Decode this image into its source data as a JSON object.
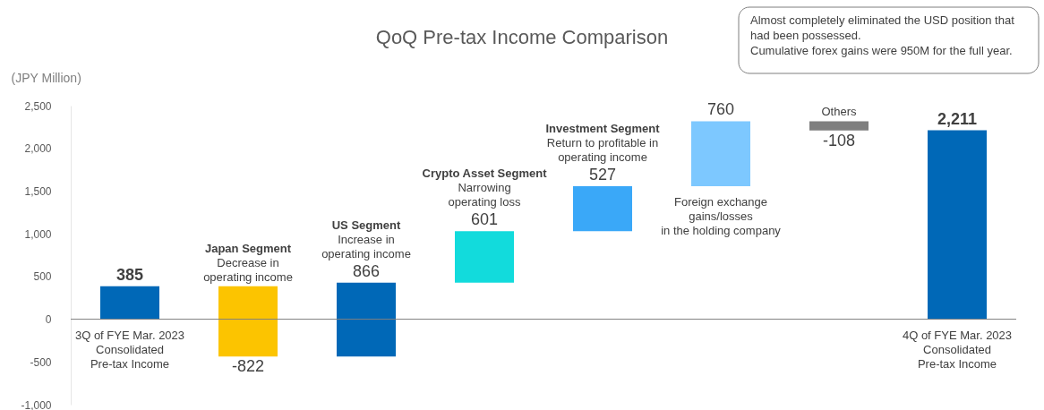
{
  "chart_data": {
    "type": "bar",
    "title": "QoQ Pre-tax Income Comparison",
    "ylabel": "(JPY Million)",
    "categories": [
      "3Q of FYE Mar. 2023\nConsolidated\nPre-tax Income",
      "Japan Segment",
      "US Segment",
      "Crypto Asset Segment",
      "Investment Segment",
      "Foreign exchange\ngains/losses\nin the holding company",
      "Others",
      "4Q of FYE Mar. 2023\nConsolidated\nPre-tax Income"
    ],
    "values": [
      385,
      -822,
      866,
      601,
      527,
      760,
      -108,
      2211
    ],
    "base": [
      0,
      385,
      -437,
      429,
      1030,
      1557,
      2317,
      0
    ],
    "colors": [
      "#0068b7",
      "#fcc400",
      "#0068b7",
      "#12dbdc",
      "#3aa8f8",
      "#7dc8ff",
      "#7f7f7f",
      "#0068b7"
    ],
    "ylim": [
      -1000,
      2500
    ],
    "yticks": [
      {
        "value": -1000,
        "label": "-1,000"
      },
      -500,
      0,
      500,
      {
        "value": 1000,
        "label": "1,000"
      },
      {
        "value": 1500,
        "label": "1,500"
      },
      {
        "value": 2000,
        "label": "2,000"
      },
      {
        "value": 2500,
        "label": "2,500"
      }
    ],
    "value_labels": [
      "385",
      "-822",
      "866",
      "601",
      "527",
      "760",
      "-108",
      "2,211"
    ],
    "grid": false,
    "annotations": [
      {
        "text": "Decrease in\noperating income",
        "x": "Japan Segment",
        "y": 385
      },
      {
        "text": "Increase in\noperating income",
        "x": "US Segment",
        "y": 429
      },
      {
        "text": "Narrowing\noperating loss",
        "x": "Crypto Asset Segment",
        "y": 1030
      },
      {
        "text": "Return to profitable in\noperating income",
        "x": "Investment Segment",
        "y": 1557
      },
      "Almost completely eliminated the USD position that\nhad been possessed.\nCumulative forex gains were 950M for the full year."
    ]
  }
}
